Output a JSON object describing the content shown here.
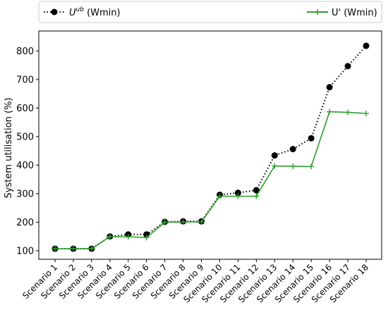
{
  "chart_data": {
    "type": "line",
    "ylabel": "System utilisation (%)",
    "xlabel": "",
    "ylim": [
      70,
      870
    ],
    "yticks": [
      100,
      200,
      300,
      400,
      500,
      600,
      700,
      800
    ],
    "categories": [
      "Scenario 1",
      "Scenario 2",
      "Scenario 3",
      "Scenario 4",
      "Scenario 5",
      "Scenario 6",
      "Scenario 7",
      "Scenario 8",
      "Scenario 9",
      "Scenario 10",
      "Scenario 11",
      "Scenario 12",
      "Scenario 13",
      "Scenario 14",
      "Scenario 15",
      "Scenario 16",
      "Scenario 17",
      "Scenario 18"
    ],
    "legend_placement": "top, outside plot",
    "grid": false,
    "series": [
      {
        "name_main": "U",
        "name_sup": "ub",
        "name_suffix": " (Wmin)",
        "color": "#000000",
        "line_style": "dotted",
        "marker": "circle",
        "values": [
          107,
          107,
          107,
          150,
          157,
          157,
          201,
          203,
          203,
          296,
          303,
          312,
          434,
          456,
          494,
          673,
          747,
          818
        ]
      },
      {
        "name": "U' (Wmin)",
        "color": "#2ca02c",
        "line_style": "solid",
        "marker": "plus",
        "values": [
          107,
          107,
          107,
          149,
          149,
          146,
          200,
          201,
          201,
          291,
          291,
          291,
          397,
          396,
          395,
          587,
          585,
          581
        ]
      }
    ]
  }
}
